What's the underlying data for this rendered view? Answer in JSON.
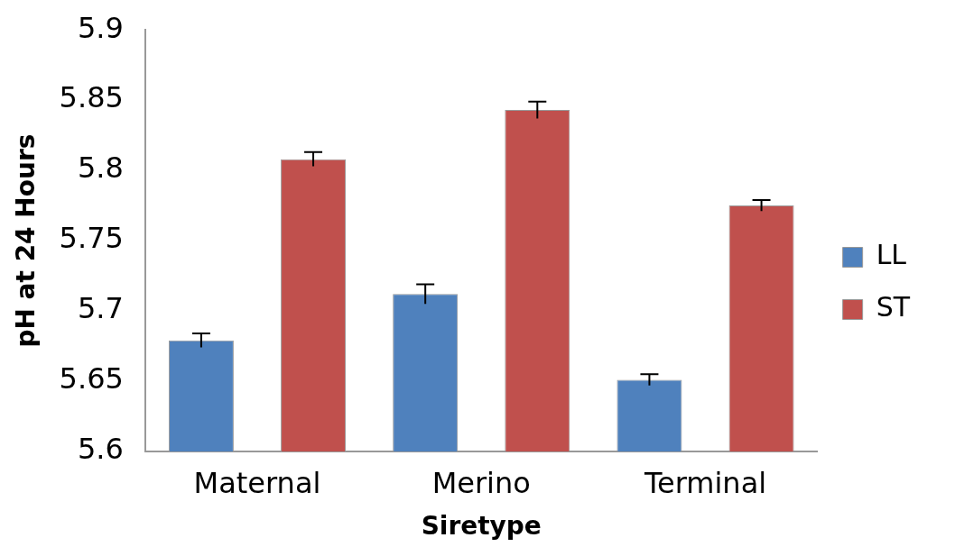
{
  "chart_data": {
    "type": "bar",
    "xlabel": "Siretype",
    "ylabel": "pH at 24 Hours",
    "categories": [
      "Maternal",
      "Merino",
      "Terminal"
    ],
    "series": [
      {
        "name": "LL",
        "color": "#4f81bd",
        "values": [
          5.679,
          5.712,
          5.651
        ],
        "errors": [
          0.005,
          0.007,
          0.004
        ]
      },
      {
        "name": "ST",
        "color": "#c0504d",
        "values": [
          5.808,
          5.843,
          5.775
        ],
        "errors": [
          0.005,
          0.006,
          0.004
        ]
      }
    ],
    "ylim": [
      5.6,
      5.9
    ],
    "yticks": [
      5.6,
      5.65,
      5.7,
      5.75,
      5.8,
      5.85,
      5.9
    ],
    "grid": false,
    "legend": "right"
  }
}
